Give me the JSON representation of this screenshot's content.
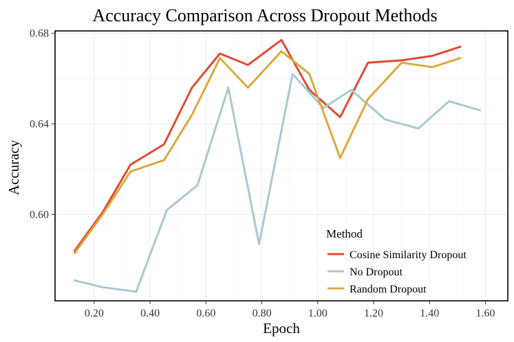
{
  "chart_data": {
    "type": "line",
    "title": "Accuracy Comparison Across Dropout Methods",
    "xlabel": "Epoch",
    "ylabel": "Accuracy",
    "xlim": [
      0.06,
      1.68
    ],
    "ylim": [
      0.562,
      0.681
    ],
    "xticks": [
      0.2,
      0.4,
      0.6,
      0.8,
      1.0,
      1.2,
      1.4,
      1.6
    ],
    "xtick_labels": [
      "0.20",
      "0.40",
      "0.60",
      "0.80",
      "1.00",
      "1.20",
      "1.40",
      "1.60"
    ],
    "yticks": [
      0.6,
      0.64,
      0.68
    ],
    "ytick_labels": [
      "0.60",
      "0.64",
      "0.68"
    ],
    "grid": true,
    "legend": {
      "title": "Method",
      "position": "bottom-right"
    },
    "series": [
      {
        "name": "Cosine Similarity Dropout",
        "color": "#e04a33",
        "x": [
          0.13,
          0.23,
          0.33,
          0.45,
          0.55,
          0.65,
          0.75,
          0.87,
          0.97,
          1.08,
          1.18,
          1.3,
          1.41,
          1.51
        ],
        "y": [
          0.584,
          0.601,
          0.622,
          0.631,
          0.656,
          0.671,
          0.666,
          0.677,
          0.655,
          0.643,
          0.667,
          0.668,
          0.67,
          0.674
        ]
      },
      {
        "name": "No Dropout",
        "color": "#a8c8d0",
        "x": [
          0.13,
          0.23,
          0.35,
          0.46,
          0.57,
          0.68,
          0.79,
          0.91,
          1.02,
          1.12,
          1.24,
          1.36,
          1.47,
          1.58
        ],
        "y": [
          0.571,
          0.568,
          0.566,
          0.602,
          0.613,
          0.656,
          0.587,
          0.662,
          0.647,
          0.655,
          0.642,
          0.638,
          0.65,
          0.646
        ]
      },
      {
        "name": "Random Dropout",
        "color": "#d9a93b",
        "x": [
          0.13,
          0.23,
          0.33,
          0.45,
          0.55,
          0.65,
          0.75,
          0.87,
          0.97,
          1.08,
          1.18,
          1.3,
          1.41,
          1.51
        ],
        "y": [
          0.583,
          0.6,
          0.619,
          0.624,
          0.644,
          0.669,
          0.656,
          0.672,
          0.662,
          0.625,
          0.651,
          0.667,
          0.665,
          0.669
        ]
      }
    ]
  }
}
